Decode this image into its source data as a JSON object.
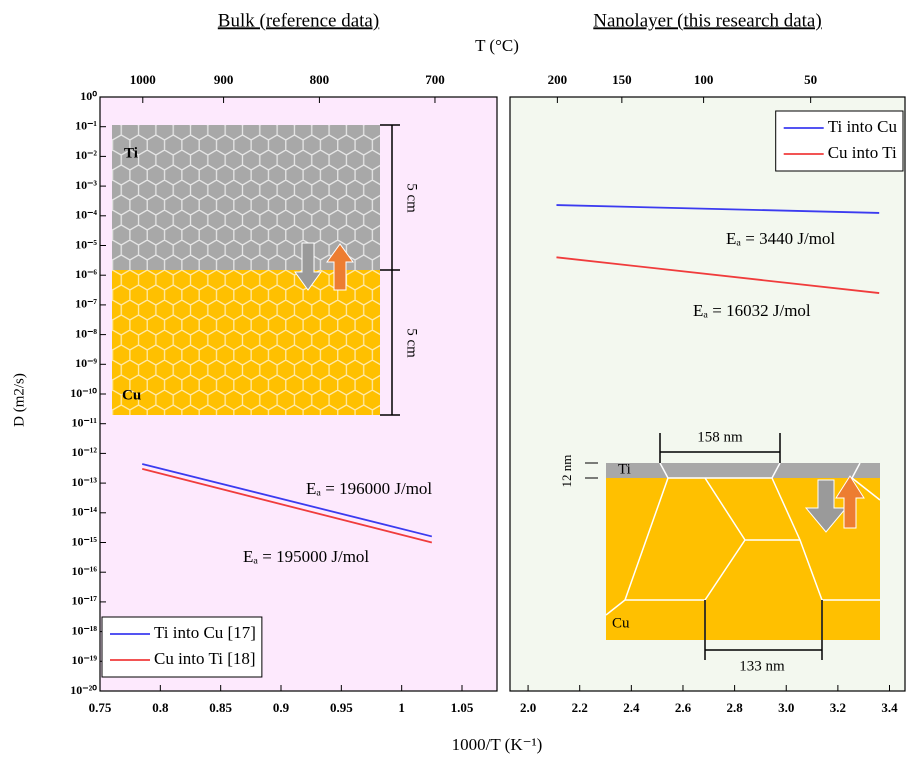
{
  "figure": {
    "y_label": "D (m2/s)",
    "x_label": "1000/T (K⁻¹)",
    "x2_label": "T (°C)"
  },
  "chart_data": [
    {
      "type": "line",
      "title": "Bulk (reference data)",
      "background": "#fde9fd",
      "log_y": true,
      "xlim": [
        0.75,
        1.079
      ],
      "xticks": [
        0.75,
        0.8,
        0.85,
        0.9,
        0.95,
        1,
        1.05
      ],
      "x2ticks": [
        1000,
        900,
        800,
        700
      ],
      "ylim": [
        1e-20,
        1
      ],
      "yticks": [
        {
          "value": 1,
          "label": "10⁰"
        },
        {
          "value": 0.1,
          "label": "10⁻¹"
        },
        {
          "value": 0.01,
          "label": "10⁻²"
        },
        {
          "value": 0.001,
          "label": "10⁻³"
        },
        {
          "value": 0.0001,
          "label": "10⁻⁴"
        },
        {
          "value": 1e-05,
          "label": "10⁻⁵"
        },
        {
          "value": 1e-06,
          "label": "10⁻⁶"
        },
        {
          "value": 1e-07,
          "label": "10⁻⁷"
        },
        {
          "value": 1e-08,
          "label": "10⁻⁸"
        },
        {
          "value": 1e-09,
          "label": "10⁻⁹"
        },
        {
          "value": 1e-10,
          "label": "10⁻¹⁰"
        },
        {
          "value": 1e-11,
          "label": "10⁻¹¹"
        },
        {
          "value": 1e-12,
          "label": "10⁻¹²"
        },
        {
          "value": 1e-13,
          "label": "10⁻¹³"
        },
        {
          "value": 1e-14,
          "label": "10⁻¹⁴"
        },
        {
          "value": 1e-15,
          "label": "10⁻¹⁵"
        },
        {
          "value": 1e-16,
          "label": "10⁻¹⁶"
        },
        {
          "value": 1e-17,
          "label": "10⁻¹⁷"
        },
        {
          "value": 1e-18,
          "label": "10⁻¹⁸"
        },
        {
          "value": 1e-19,
          "label": "10⁻¹⁹"
        },
        {
          "value": 1e-20,
          "label": "10⁻²⁰"
        }
      ],
      "series": [
        {
          "name": "Ti into Cu  [17]",
          "color": "#3b3bf0",
          "x": [
            0.785,
            1.025
          ],
          "values": [
            4.4e-13,
            1.6e-15
          ]
        },
        {
          "name": "Cu into Ti  [18]",
          "color": "#f03c3c",
          "x": [
            0.785,
            1.025
          ],
          "values": [
            3e-13,
            1e-15
          ]
        }
      ],
      "legend": "lower left",
      "annotations": [
        {
          "text": "Eₐ = 196000 J/mol",
          "color": "#3b3bf0"
        },
        {
          "text": "Eₐ = 195000 J/mol",
          "color": "#f03c3c"
        }
      ],
      "inset_labels": [
        "Ti",
        "Cu",
        "5 cm",
        "5 cm"
      ]
    },
    {
      "type": "line",
      "title": "Nanolayer (this research data)",
      "background": "#f3f8ef",
      "log_y": true,
      "xlim": [
        1.93,
        3.46
      ],
      "xticks": [
        {
          "value": 2,
          "label": "2.0"
        },
        2.2,
        2.4,
        2.6,
        2.8,
        {
          "value": 3,
          "label": "3.0"
        },
        3.2,
        3.4
      ],
      "x2ticks": [
        200,
        150,
        100,
        50
      ],
      "ylim": [
        1e-20,
        1
      ],
      "series": [
        {
          "name": "Ti into Cu",
          "color": "#3b3bf0",
          "x": [
            2.11,
            3.36
          ],
          "values": [
            0.00023,
            0.000125
          ]
        },
        {
          "name": "Cu into Ti",
          "color": "#f03c3c",
          "x": [
            2.11,
            3.36
          ],
          "values": [
            4e-06,
            2.5e-07
          ]
        }
      ],
      "legend": "upper right",
      "annotations": [
        {
          "text": "Eₐ = 3440 J/mol",
          "color": "#3b3bf0"
        },
        {
          "text": "Eₐ = 16032 J/mol",
          "color": "#f03c3c"
        }
      ],
      "inset_labels": [
        "Ti",
        "Cu",
        "158 nm",
        "133 nm",
        "12 nm"
      ]
    }
  ]
}
